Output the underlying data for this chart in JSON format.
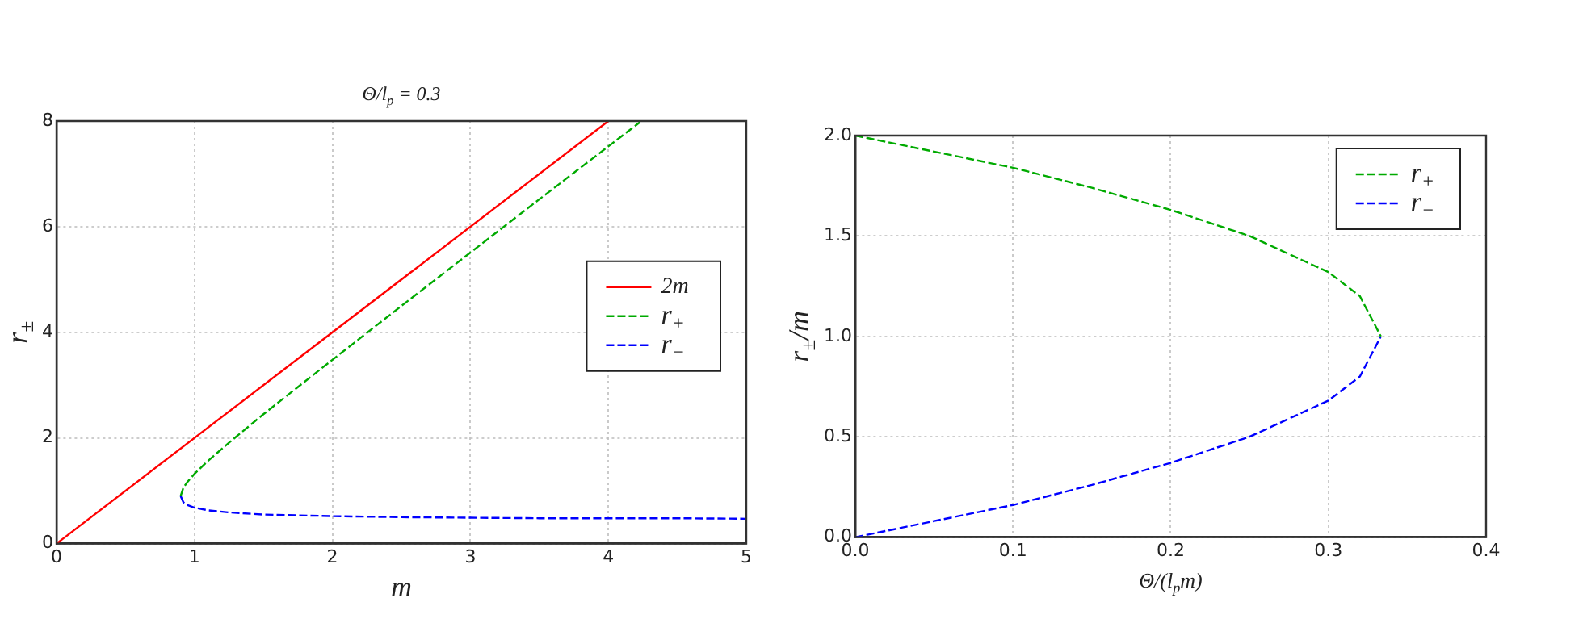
{
  "chart_data": [
    {
      "type": "line",
      "title": "Θ/l$_{p}$ = 0.3",
      "xlabel": "m",
      "ylabel": "r$_{±}$",
      "xlim": [
        0,
        5
      ],
      "ylim": [
        0,
        8
      ],
      "xticks": [
        0,
        1,
        2,
        3,
        4,
        5
      ],
      "yticks": [
        0,
        2,
        4,
        6,
        8
      ],
      "grid": true,
      "legend": "right",
      "marker": "none",
      "series": [
        {
          "name": "2m",
          "color": "#ff0000",
          "line_style": "solid",
          "x": [
            0,
            4
          ],
          "values": [
            0,
            8
          ]
        },
        {
          "name": "r$_{+}$",
          "color": "#00aa00",
          "line_style": "dashed",
          "x": [
            0.9,
            0.92,
            0.95,
            1,
            1.1,
            1.25,
            1.5,
            2,
            2.5,
            3,
            3.5,
            4,
            4.23
          ],
          "values": [
            0.9,
            1.06,
            1.17,
            1.32,
            1.57,
            1.91,
            2.45,
            3.48,
            4.5,
            5.51,
            6.52,
            7.52,
            7.98
          ]
        },
        {
          "name": "r$_{−}$",
          "color": "#0000ff",
          "line_style": "dashed",
          "x": [
            0.9,
            0.92,
            0.95,
            1,
            1.1,
            1.25,
            1.5,
            2,
            2.5,
            3,
            3.5,
            4,
            4.5,
            5
          ],
          "values": [
            0.9,
            0.78,
            0.73,
            0.68,
            0.63,
            0.59,
            0.55,
            0.52,
            0.5,
            0.49,
            0.48,
            0.48,
            0.48,
            0.47
          ]
        }
      ]
    },
    {
      "type": "line",
      "xlabel": "Θ/(l$_{p}$m)",
      "ylabel": "r$_{±}$/m",
      "xlim": [
        0,
        0.4
      ],
      "ylim": [
        0,
        2
      ],
      "xticks": [
        {
          "value": 0,
          "label": "0.0"
        },
        0.1,
        0.2,
        0.3,
        0.4
      ],
      "yticks": [
        {
          "value": 0,
          "label": "0.0"
        },
        0.5,
        {
          "value": 1,
          "label": "1.0"
        },
        1.5,
        {
          "value": 2,
          "label": "2.0"
        }
      ],
      "grid": true,
      "legend": "top right",
      "marker": "none",
      "series": [
        {
          "name": "r$_{+}$",
          "color": "#00aa00",
          "line_style": "dashed",
          "x": [
            0,
            0.05,
            0.1,
            0.15,
            0.2,
            0.25,
            0.3,
            0.32,
            0.3333
          ],
          "values": [
            2,
            1.92,
            1.84,
            1.74,
            1.63,
            1.5,
            1.32,
            1.2,
            1
          ]
        },
        {
          "name": "r$_{−}$",
          "color": "#0000ff",
          "line_style": "dashed",
          "x": [
            0,
            0.05,
            0.1,
            0.15,
            0.2,
            0.25,
            0.3,
            0.32,
            0.3333
          ],
          "values": [
            0,
            0.08,
            0.16,
            0.26,
            0.37,
            0.5,
            0.68,
            0.8,
            1
          ]
        }
      ]
    }
  ]
}
